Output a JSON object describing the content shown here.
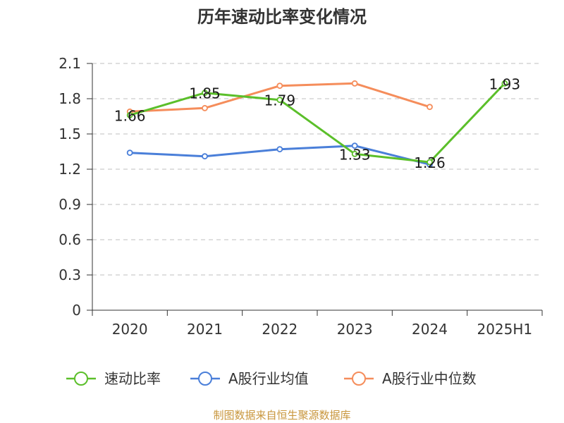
{
  "chart_data": {
    "type": "line",
    "title": "历年速动比率变化情况",
    "categories": [
      "2020",
      "2021",
      "2022",
      "2023",
      "2024",
      "2025H1"
    ],
    "y_ticks": [
      "0",
      "0.3",
      "0.6",
      "0.9",
      "1.2",
      "1.5",
      "1.8",
      "2.1"
    ],
    "ylim": [
      0,
      2.1
    ],
    "grid": true,
    "legend_position": "bottom",
    "series": [
      {
        "name": "速动比率",
        "color": "#5bbf2a",
        "values": [
          1.66,
          1.85,
          1.79,
          1.33,
          1.26,
          1.93
        ],
        "labels": [
          "1.66",
          "1.85",
          "1.79",
          "1.33",
          "1.26",
          "1.93"
        ]
      },
      {
        "name": "A股行业均值",
        "color": "#4a7fd9",
        "values": [
          1.34,
          1.31,
          1.37,
          1.4,
          1.24,
          null
        ]
      },
      {
        "name": "A股行业中位数",
        "color": "#f58d5b",
        "values": [
          1.69,
          1.72,
          1.91,
          1.93,
          1.73,
          null
        ]
      }
    ]
  },
  "footer": "制图数据来自恒生聚源数据库"
}
